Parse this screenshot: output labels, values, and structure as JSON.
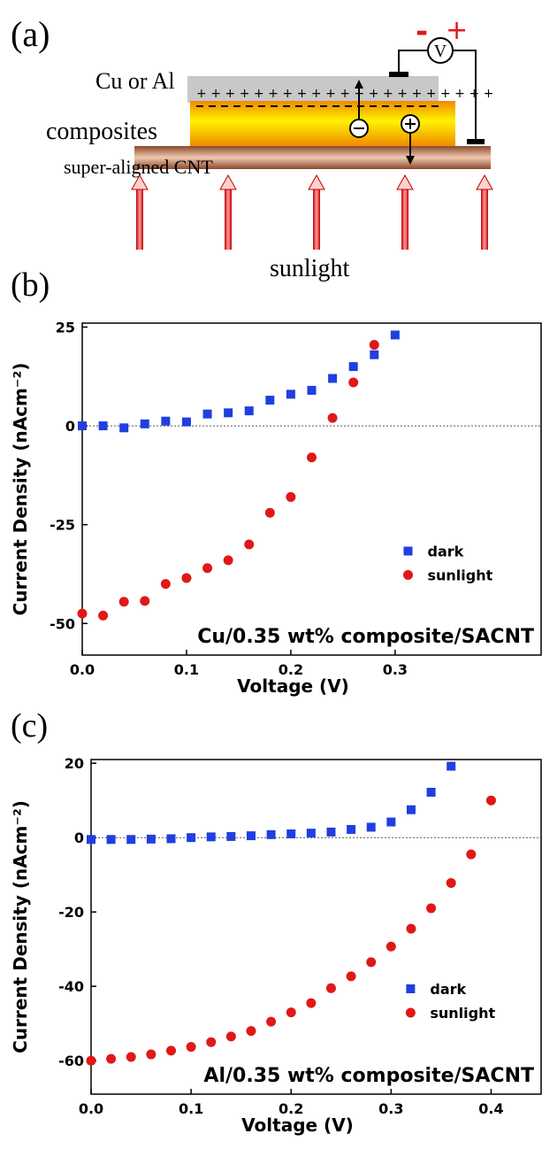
{
  "diagram": {
    "panel_label": "(a)",
    "top_layer": "Cu or Al",
    "middle_layer": "composites",
    "bottom_layer": "super-aligned CNT",
    "light": "sunlight",
    "meter": "V",
    "meter_minus": "-",
    "meter_plus": "+"
  },
  "chart_data": [
    {
      "type": "scatter",
      "panel_label": "(b)",
      "annotation": "Cu/0.35 wt% composite/SACNT",
      "x_label": "Voltage (V)",
      "y_label": "Current Density (nAcm⁻²)",
      "xlim": [
        0,
        0.44
      ],
      "ylim": [
        -58,
        26
      ],
      "xticks": [
        {
          "value": 0,
          "label": "0.0"
        },
        0.1,
        0.2,
        0.3
      ],
      "yticks": [
        -50,
        -25,
        0,
        25
      ],
      "legend": "center right",
      "zero_line": true,
      "series": [
        {
          "name": "dark",
          "color": "#1f3fe0",
          "marker": "square",
          "x": [
            0,
            0.02,
            0.04,
            0.06,
            0.08,
            0.1,
            0.12,
            0.14,
            0.16,
            0.18,
            0.2,
            0.22,
            0.24,
            0.26,
            0.28,
            0.3
          ],
          "values": [
            0,
            0,
            -0.5,
            0.5,
            1.2,
            1,
            3,
            3.3,
            3.8,
            6.5,
            8,
            9,
            12,
            15,
            18,
            23
          ]
        },
        {
          "name": "sunlight",
          "color": "#e01818",
          "marker": "circle",
          "x": [
            0,
            0.02,
            0.04,
            0.06,
            0.08,
            0.1,
            0.12,
            0.14,
            0.16,
            0.18,
            0.2,
            0.22,
            0.24,
            0.26,
            0.28
          ],
          "values": [
            -47.5,
            -48,
            -44.5,
            -44.3,
            -40,
            -38.5,
            -36,
            -34,
            -30,
            -22,
            -18,
            -8,
            2,
            11,
            20.5
          ]
        }
      ]
    },
    {
      "type": "scatter",
      "panel_label": "(c)",
      "annotation": "Al/0.35 wt% composite/SACNT",
      "x_label": "Voltage (V)",
      "y_label": "Current Density (nAcm⁻²)",
      "xlim": [
        0,
        0.45
      ],
      "ylim": [
        -69,
        21
      ],
      "xticks": [
        {
          "value": 0,
          "label": "0.0"
        },
        0.1,
        0.2,
        0.3,
        0.4
      ],
      "yticks": [
        -60,
        -40,
        -20,
        0,
        20
      ],
      "legend": "center right",
      "zero_line": true,
      "series": [
        {
          "name": "dark",
          "color": "#1f3fe0",
          "marker": "square",
          "x": [
            0,
            0.02,
            0.04,
            0.06,
            0.08,
            0.1,
            0.12,
            0.14,
            0.16,
            0.18,
            0.2,
            0.22,
            0.24,
            0.26,
            0.28,
            0.3,
            0.32,
            0.34,
            0.36
          ],
          "values": [
            -0.5,
            -0.5,
            -0.5,
            -0.4,
            -0.3,
            0,
            0.2,
            0.3,
            0.5,
            0.8,
            1,
            1.2,
            1.5,
            2.2,
            2.8,
            4.2,
            7.5,
            12.2,
            19.2
          ]
        },
        {
          "name": "sunlight",
          "color": "#e01818",
          "marker": "circle",
          "x": [
            0,
            0.02,
            0.04,
            0.06,
            0.08,
            0.1,
            0.12,
            0.14,
            0.16,
            0.18,
            0.2,
            0.22,
            0.24,
            0.26,
            0.28,
            0.3,
            0.32,
            0.34,
            0.36,
            0.38,
            0.4
          ],
          "values": [
            -60,
            -59.5,
            -59,
            -58.3,
            -57.3,
            -56.3,
            -55,
            -53.5,
            -52,
            -49.5,
            -47,
            -44.5,
            -40.5,
            -37.3,
            -33.5,
            -29.3,
            -24.5,
            -19,
            -12.2,
            -4.5,
            10
          ]
        }
      ]
    }
  ]
}
